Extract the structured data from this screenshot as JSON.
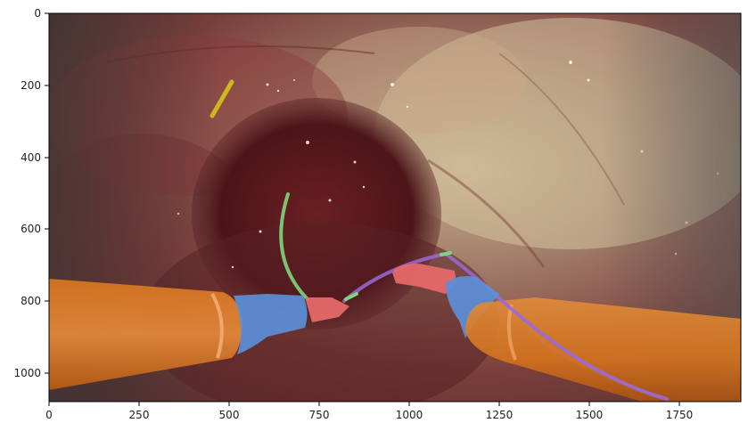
{
  "figure": {
    "x_ticks": [
      "0",
      "250",
      "500",
      "750",
      "1000",
      "1250",
      "1500",
      "1750"
    ],
    "y_ticks": [
      "0",
      "200",
      "400",
      "600",
      "800",
      "1000"
    ]
  },
  "image": {
    "subject": "laparoscopic surgical scene with color segmentation overlay",
    "overlay_classes": [
      {
        "name": "instrument shaft",
        "color": "#e07a1f"
      },
      {
        "name": "instrument wrist",
        "color": "#5b8fd9"
      },
      {
        "name": "instrument clasper",
        "color": "#e86a6a"
      },
      {
        "name": "needle",
        "color": "#7fd67a"
      },
      {
        "name": "thread",
        "color": "#9a6ad6"
      },
      {
        "name": "clip",
        "color": "#d6c21a"
      }
    ],
    "colors": {
      "tissue_dark": "#5a2323",
      "tissue_mid": "#8a4a42",
      "tissue_light": "#c9b08e",
      "frame": "#000000"
    }
  }
}
